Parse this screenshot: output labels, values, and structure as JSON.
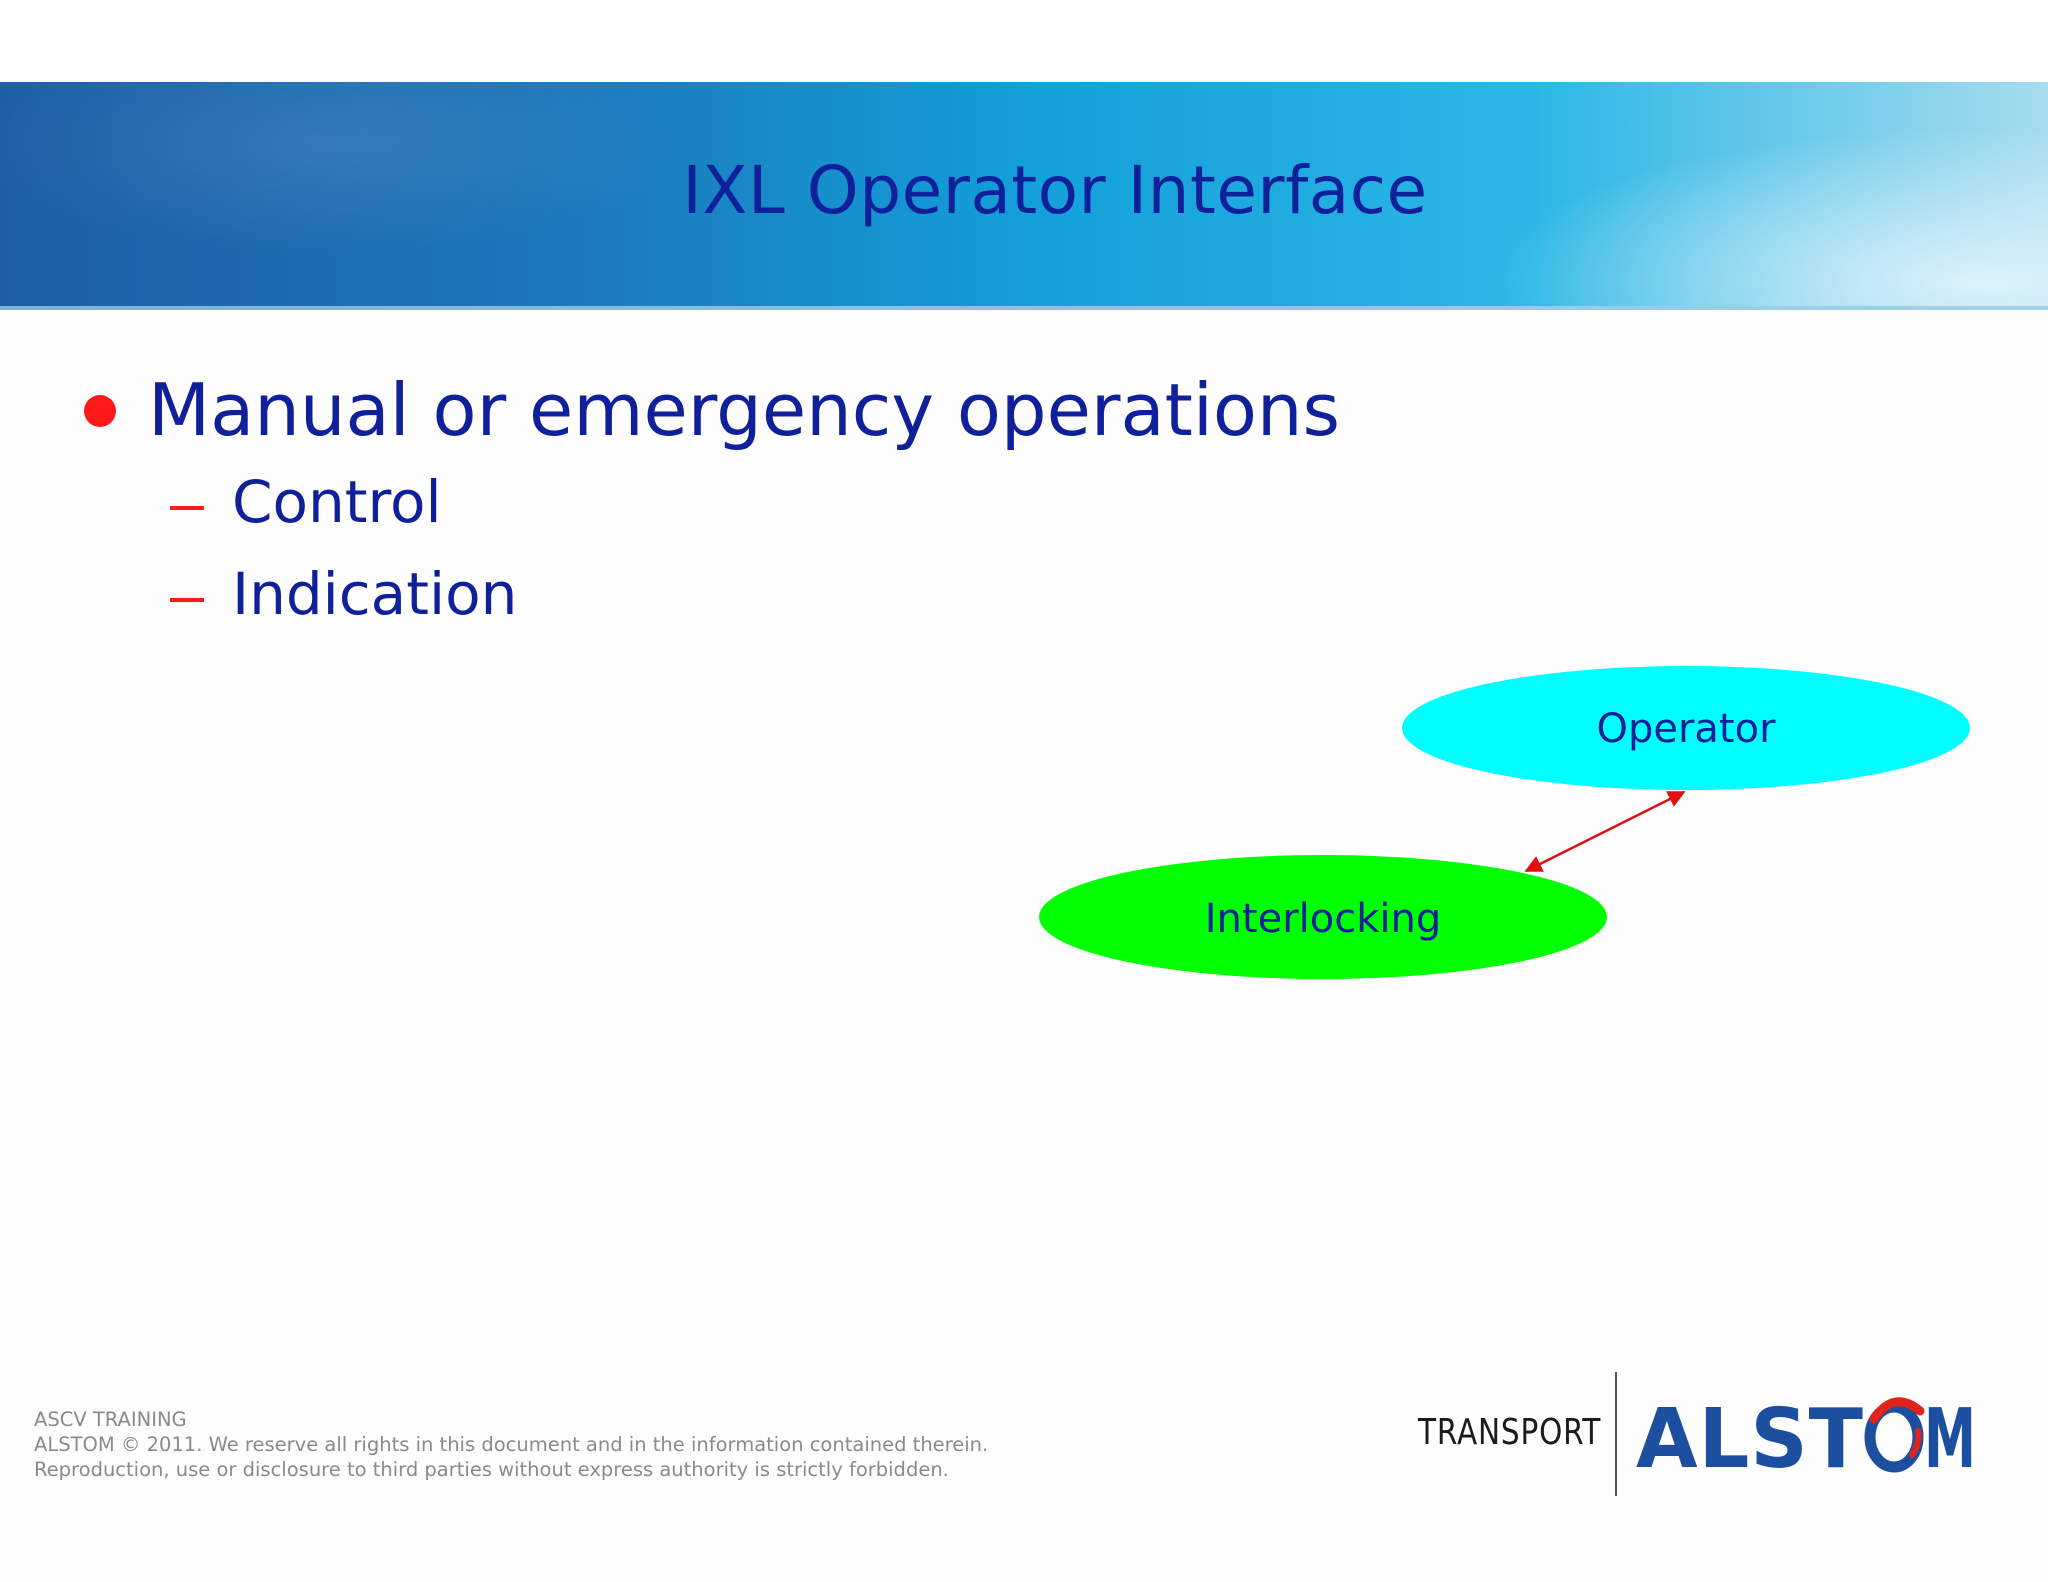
{
  "slide": {
    "title": "IXL Operator Interface",
    "bullets": [
      {
        "text": "Manual or emergency operations",
        "sub_items": [
          "Control",
          "Indication"
        ]
      }
    ]
  },
  "diagram": {
    "nodes": [
      {
        "label": "Operator",
        "color": "#00ffff"
      },
      {
        "label": "Interlocking",
        "color": "#00ff00"
      }
    ],
    "edge": {
      "from": "Operator",
      "to": "Interlocking",
      "direction": "bidirectional",
      "color": "#e01010"
    }
  },
  "footer": {
    "line1": "ASCV TRAINING",
    "line2": "ALSTOM © 2011. We reserve all rights in this document and in the information contained therein.",
    "line3": "Reproduction, use or disclosure to third parties without express authority is strictly forbidden."
  },
  "logo": {
    "division": "TRANSPORT",
    "brand": "ALSTOM",
    "brand_color": "#1c4fa0",
    "accent_color": "#e2231a"
  },
  "colors": {
    "title_text": "#10209a",
    "body_text": "#10209a",
    "bullet": "#ff1a1a"
  }
}
